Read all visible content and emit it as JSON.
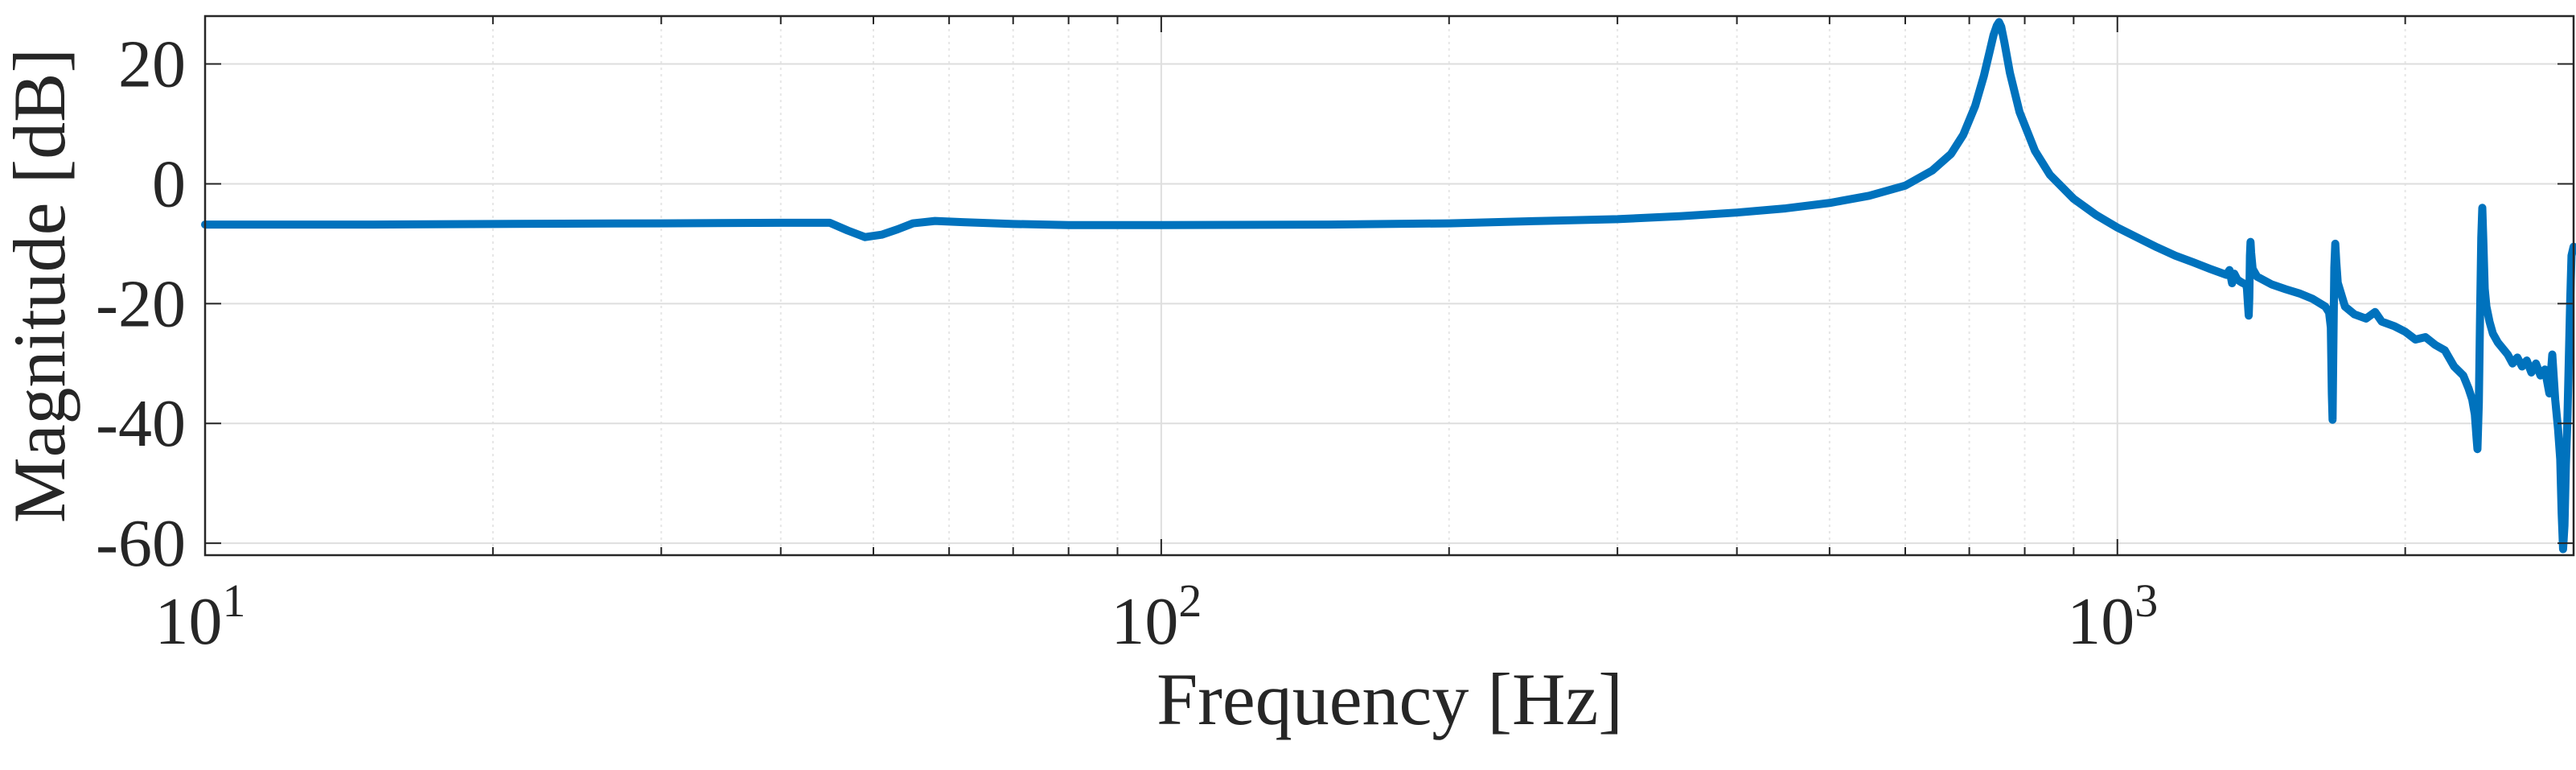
{
  "chart_data": {
    "type": "line",
    "title": "",
    "xlabel": "Frequency [Hz]",
    "ylabel": "Magnitude [dB]",
    "x_scale": "log",
    "xlim": [
      10,
      3000
    ],
    "ylim": [
      -62,
      28
    ],
    "grid": true,
    "legend": "none",
    "x_ticks": [
      {
        "value": 10,
        "base": "10",
        "exp": "1"
      },
      {
        "value": 100,
        "base": "10",
        "exp": "2"
      },
      {
        "value": 1000,
        "base": "10",
        "exp": "3"
      }
    ],
    "y_ticks": [
      {
        "value": 20,
        "label": "20"
      },
      {
        "value": 0,
        "label": "0"
      },
      {
        "value": -20,
        "label": "-20"
      },
      {
        "value": -40,
        "label": "-40"
      },
      {
        "value": -60,
        "label": "-60"
      }
    ],
    "series": [
      {
        "color": "#0072BD",
        "points": [
          [
            10,
            -6.8
          ],
          [
            15,
            -6.8
          ],
          [
            20,
            -6.7
          ],
          [
            30,
            -6.6
          ],
          [
            40,
            -6.5
          ],
          [
            45,
            -6.5
          ],
          [
            47,
            -7.8
          ],
          [
            49,
            -8.9
          ],
          [
            51,
            -8.5
          ],
          [
            53,
            -7.6
          ],
          [
            55,
            -6.6
          ],
          [
            58,
            -6.2
          ],
          [
            62,
            -6.4
          ],
          [
            70,
            -6.7
          ],
          [
            80,
            -6.9
          ],
          [
            100,
            -6.9
          ],
          [
            150,
            -6.8
          ],
          [
            200,
            -6.6
          ],
          [
            250,
            -6.2
          ],
          [
            300,
            -5.9
          ],
          [
            350,
            -5.4
          ],
          [
            400,
            -4.8
          ],
          [
            450,
            -4.1
          ],
          [
            500,
            -3.2
          ],
          [
            550,
            -2.0
          ],
          [
            600,
            -0.3
          ],
          [
            640,
            2.2
          ],
          [
            670,
            5.0
          ],
          [
            690,
            8.2
          ],
          [
            710,
            13.0
          ],
          [
            725,
            18.0
          ],
          [
            735,
            22.0
          ],
          [
            742,
            24.8
          ],
          [
            748,
            26.4
          ],
          [
            752,
            27.0
          ],
          [
            756,
            26.2
          ],
          [
            762,
            23.5
          ],
          [
            772,
            18.5
          ],
          [
            790,
            12.0
          ],
          [
            820,
            5.5
          ],
          [
            850,
            1.5
          ],
          [
            900,
            -2.5
          ],
          [
            950,
            -5.2
          ],
          [
            1000,
            -7.3
          ],
          [
            1050,
            -9.0
          ],
          [
            1100,
            -10.6
          ],
          [
            1150,
            -12.0
          ],
          [
            1200,
            -13.1
          ],
          [
            1250,
            -14.2
          ],
          [
            1280,
            -14.8
          ],
          [
            1300,
            -15.2
          ],
          [
            1310,
            -14.4
          ],
          [
            1318,
            -16.6
          ],
          [
            1325,
            -15.0
          ],
          [
            1335,
            -16.0
          ],
          [
            1350,
            -16.5
          ],
          [
            1362,
            -16.8
          ],
          [
            1366,
            -17.4
          ],
          [
            1370,
            -20.5
          ],
          [
            1372,
            -22.0
          ],
          [
            1374,
            -19.0
          ],
          [
            1376,
            -12.0
          ],
          [
            1378,
            -9.7
          ],
          [
            1380,
            -11.5
          ],
          [
            1385,
            -14.2
          ],
          [
            1400,
            -15.5
          ],
          [
            1450,
            -16.8
          ],
          [
            1500,
            -17.6
          ],
          [
            1550,
            -18.3
          ],
          [
            1600,
            -19.2
          ],
          [
            1650,
            -20.5
          ],
          [
            1665,
            -21.5
          ],
          [
            1672,
            -24.0
          ],
          [
            1676,
            -35.0
          ],
          [
            1679,
            -39.4
          ],
          [
            1682,
            -28.0
          ],
          [
            1686,
            -14.0
          ],
          [
            1690,
            -10.0
          ],
          [
            1694,
            -13.0
          ],
          [
            1700,
            -16.5
          ],
          [
            1730,
            -20.5
          ],
          [
            1770,
            -21.8
          ],
          [
            1820,
            -22.5
          ],
          [
            1860,
            -21.4
          ],
          [
            1890,
            -23.0
          ],
          [
            1950,
            -23.8
          ],
          [
            2000,
            -24.7
          ],
          [
            2050,
            -26.0
          ],
          [
            2100,
            -25.6
          ],
          [
            2150,
            -26.9
          ],
          [
            2200,
            -27.8
          ],
          [
            2250,
            -30.5
          ],
          [
            2300,
            -32.0
          ],
          [
            2330,
            -34.2
          ],
          [
            2350,
            -36.0
          ],
          [
            2365,
            -38.5
          ],
          [
            2375,
            -42.5
          ],
          [
            2380,
            -44.3
          ],
          [
            2388,
            -36.5
          ],
          [
            2395,
            -22.0
          ],
          [
            2402,
            -9.0
          ],
          [
            2408,
            -4.0
          ],
          [
            2414,
            -9.5
          ],
          [
            2422,
            -17.5
          ],
          [
            2432,
            -20.5
          ],
          [
            2450,
            -23.0
          ],
          [
            2470,
            -25.0
          ],
          [
            2500,
            -26.5
          ],
          [
            2530,
            -27.5
          ],
          [
            2560,
            -28.5
          ],
          [
            2590,
            -30.0
          ],
          [
            2620,
            -29.0
          ],
          [
            2650,
            -30.5
          ],
          [
            2680,
            -29.5
          ],
          [
            2710,
            -31.5
          ],
          [
            2740,
            -30.0
          ],
          [
            2770,
            -32.0
          ],
          [
            2800,
            -31.0
          ],
          [
            2830,
            -35.0
          ],
          [
            2850,
            -28.5
          ],
          [
            2870,
            -36.0
          ],
          [
            2890,
            -41.0
          ],
          [
            2905,
            -46.0
          ],
          [
            2915,
            -55.0
          ],
          [
            2925,
            -61.0
          ],
          [
            2935,
            -57.0
          ],
          [
            2945,
            -47.0
          ],
          [
            2955,
            -40.0
          ],
          [
            2965,
            -30.0
          ],
          [
            2975,
            -20.0
          ],
          [
            2985,
            -12.0
          ],
          [
            3000,
            -10.5
          ]
        ]
      }
    ]
  }
}
